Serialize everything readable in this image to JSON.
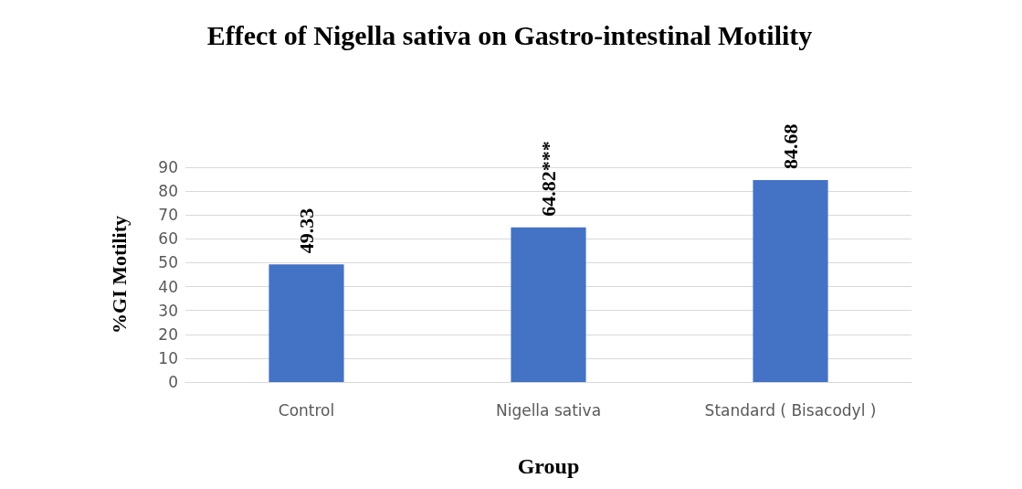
{
  "chart_data": {
    "type": "bar",
    "title": "Effect of Nigella sativa on Gastro-intestinal Motility",
    "xlabel": "Group",
    "ylabel": "%GI Motility",
    "categories": [
      "Control",
      "Nigella sativa",
      "Standard ( Bisacodyl )"
    ],
    "values": [
      49.33,
      64.82,
      84.68
    ],
    "value_labels": [
      "49.33",
      "64.82***",
      "84.68"
    ],
    "color": "#4472c4",
    "ylim": [
      0,
      90
    ],
    "yticks": [
      0,
      10,
      20,
      30,
      40,
      50,
      60,
      70,
      80,
      90
    ],
    "grid": "y"
  }
}
